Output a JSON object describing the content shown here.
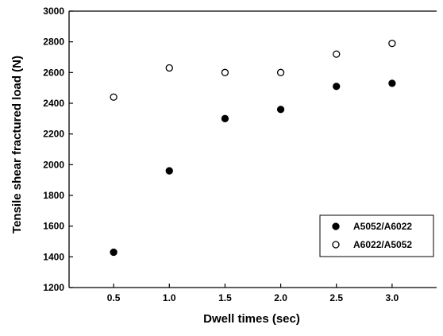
{
  "chart_data": {
    "type": "scatter",
    "title": "",
    "xlabel": "Dwell times (sec)",
    "ylabel": "Tensile shear fractured load (N)",
    "xlim": [
      0.1,
      3.4
    ],
    "ylim": [
      1200,
      3000
    ],
    "x_ticks": [
      "0.5",
      "1.0",
      "1.5",
      "2.0",
      "2.5",
      "3.0"
    ],
    "y_ticks": [
      "1200",
      "1400",
      "1600",
      "1800",
      "2000",
      "2200",
      "2400",
      "2600",
      "2800",
      "3000"
    ],
    "grid": false,
    "legend_position": "bottom-right",
    "series": [
      {
        "name": "A5052/A6022",
        "marker": "filled-circle",
        "color": "#000000",
        "x": [
          0.5,
          1.0,
          1.5,
          2.0,
          2.5,
          3.0
        ],
        "y": [
          1430,
          1960,
          2300,
          2360,
          2510,
          2530
        ]
      },
      {
        "name": "A6022/A5052",
        "marker": "open-circle",
        "color": "#000000",
        "x": [
          0.5,
          1.0,
          1.5,
          2.0,
          2.5,
          3.0
        ],
        "y": [
          2440,
          2630,
          2600,
          2600,
          2720,
          2790
        ]
      }
    ]
  }
}
